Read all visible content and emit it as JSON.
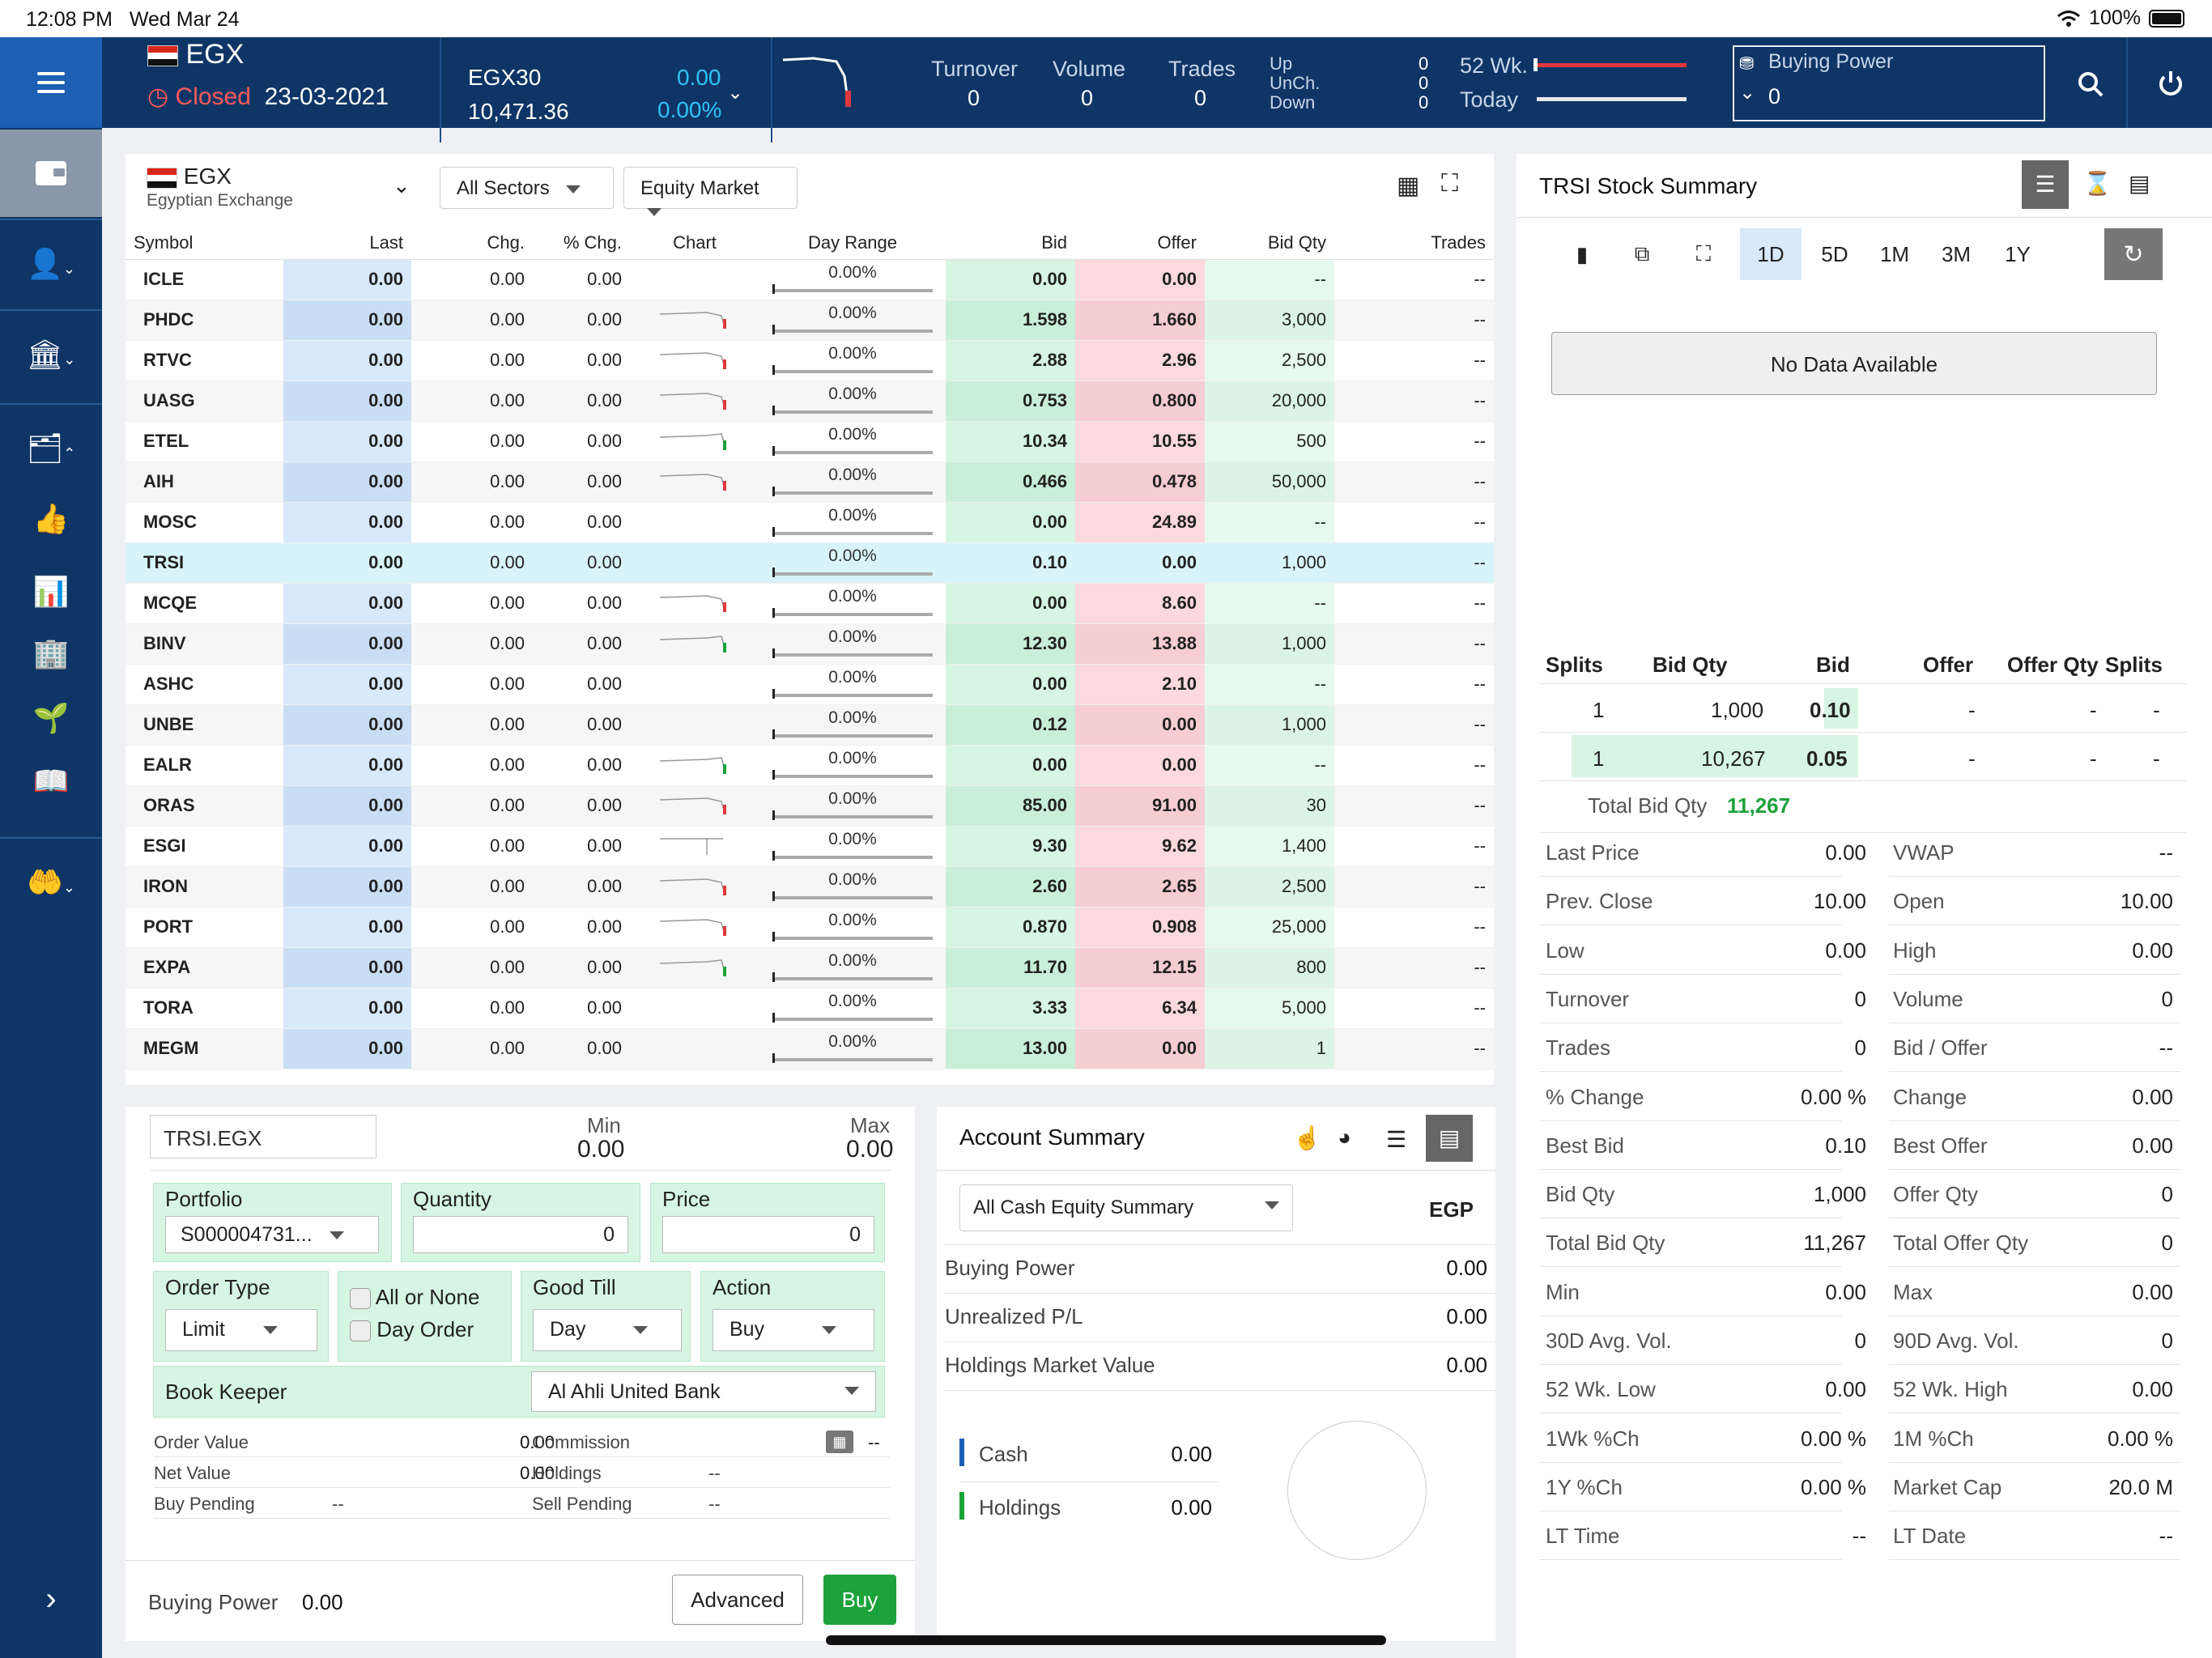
{
  "status": {
    "time": "12:08 PM",
    "date": "Wed Mar 24",
    "battery": "100%"
  },
  "header": {
    "exchange": "EGX",
    "state": "Closed",
    "date": "23-03-2021",
    "index_name": "EGX30",
    "index_value": "10,471.36",
    "index_change": "0.00",
    "index_pct": "0.00%",
    "turnover_label": "Turnover",
    "turnover": "0",
    "volume_label": "Volume",
    "volume": "0",
    "trades_label": "Trades",
    "trades": "0",
    "up_label": "Up",
    "unch_label": "UnCh.",
    "down_label": "Down",
    "up": "0",
    "unch": "0",
    "down": "0",
    "wk52_label": "52 Wk.",
    "today_label": "Today",
    "buying_power_label": "Buying Power",
    "buying_power": "0"
  },
  "watchlist": {
    "exchange": "EGX",
    "exchange_full": "Egyptian Exchange",
    "sector_filter": "All Sectors",
    "market_filter": "Equity Market",
    "columns": [
      "Symbol",
      "Last",
      "Chg.",
      "% Chg.",
      "Chart",
      "Day Range",
      "Bid",
      "Offer",
      "Bid Qty",
      "Trades"
    ],
    "rows": [
      {
        "s": "ICLE",
        "last": "0.00",
        "chg": "0.00",
        "pct": "0.00",
        "dr": "0.00%",
        "bid": "0.00",
        "off": "0.00",
        "bq": "--",
        "tr": "--",
        "chart": "none"
      },
      {
        "s": "PHDC",
        "last": "0.00",
        "chg": "0.00",
        "pct": "0.00",
        "dr": "0.00%",
        "bid": "1.598",
        "off": "1.660",
        "bq": "3,000",
        "tr": "--",
        "chart": "red"
      },
      {
        "s": "RTVC",
        "last": "0.00",
        "chg": "0.00",
        "pct": "0.00",
        "dr": "0.00%",
        "bid": "2.88",
        "off": "2.96",
        "bq": "2,500",
        "tr": "--",
        "chart": "red"
      },
      {
        "s": "UASG",
        "last": "0.00",
        "chg": "0.00",
        "pct": "0.00",
        "dr": "0.00%",
        "bid": "0.753",
        "off": "0.800",
        "bq": "20,000",
        "tr": "--",
        "chart": "red"
      },
      {
        "s": "ETEL",
        "last": "0.00",
        "chg": "0.00",
        "pct": "0.00",
        "dr": "0.00%",
        "bid": "10.34",
        "off": "10.55",
        "bq": "500",
        "tr": "--",
        "chart": "green"
      },
      {
        "s": "AIH",
        "last": "0.00",
        "chg": "0.00",
        "pct": "0.00",
        "dr": "0.00%",
        "bid": "0.466",
        "off": "0.478",
        "bq": "50,000",
        "tr": "--",
        "chart": "red"
      },
      {
        "s": "MOSC",
        "last": "0.00",
        "chg": "0.00",
        "pct": "0.00",
        "dr": "0.00%",
        "bid": "0.00",
        "off": "24.89",
        "bq": "--",
        "tr": "--",
        "chart": "none"
      },
      {
        "s": "TRSI",
        "last": "0.00",
        "chg": "0.00",
        "pct": "0.00",
        "dr": "0.00%",
        "bid": "0.10",
        "off": "0.00",
        "bq": "1,000",
        "tr": "--",
        "chart": "none",
        "sel": true
      },
      {
        "s": "MCQE",
        "last": "0.00",
        "chg": "0.00",
        "pct": "0.00",
        "dr": "0.00%",
        "bid": "0.00",
        "off": "8.60",
        "bq": "--",
        "tr": "--",
        "chart": "red"
      },
      {
        "s": "BINV",
        "last": "0.00",
        "chg": "0.00",
        "pct": "0.00",
        "dr": "0.00%",
        "bid": "12.30",
        "off": "13.88",
        "bq": "1,000",
        "tr": "--",
        "chart": "green"
      },
      {
        "s": "ASHC",
        "last": "0.00",
        "chg": "0.00",
        "pct": "0.00",
        "dr": "0.00%",
        "bid": "0.00",
        "off": "2.10",
        "bq": "--",
        "tr": "--",
        "chart": "none"
      },
      {
        "s": "UNBE",
        "last": "0.00",
        "chg": "0.00",
        "pct": "0.00",
        "dr": "0.00%",
        "bid": "0.12",
        "off": "0.00",
        "bq": "1,000",
        "tr": "--",
        "chart": "none"
      },
      {
        "s": "EALR",
        "last": "0.00",
        "chg": "0.00",
        "pct": "0.00",
        "dr": "0.00%",
        "bid": "0.00",
        "off": "0.00",
        "bq": "--",
        "tr": "--",
        "chart": "green"
      },
      {
        "s": "ORAS",
        "last": "0.00",
        "chg": "0.00",
        "pct": "0.00",
        "dr": "0.00%",
        "bid": "85.00",
        "off": "91.00",
        "bq": "30",
        "tr": "--",
        "chart": "red"
      },
      {
        "s": "ESGI",
        "last": "0.00",
        "chg": "0.00",
        "pct": "0.00",
        "dr": "0.00%",
        "bid": "9.30",
        "off": "9.62",
        "bq": "1,400",
        "tr": "--",
        "chart": "flat"
      },
      {
        "s": "IRON",
        "last": "0.00",
        "chg": "0.00",
        "pct": "0.00",
        "dr": "0.00%",
        "bid": "2.60",
        "off": "2.65",
        "bq": "2,500",
        "tr": "--",
        "chart": "red"
      },
      {
        "s": "PORT",
        "last": "0.00",
        "chg": "0.00",
        "pct": "0.00",
        "dr": "0.00%",
        "bid": "0.870",
        "off": "0.908",
        "bq": "25,000",
        "tr": "--",
        "chart": "red"
      },
      {
        "s": "EXPA",
        "last": "0.00",
        "chg": "0.00",
        "pct": "0.00",
        "dr": "0.00%",
        "bid": "11.70",
        "off": "12.15",
        "bq": "800",
        "tr": "--",
        "chart": "green"
      },
      {
        "s": "TORA",
        "last": "0.00",
        "chg": "0.00",
        "pct": "0.00",
        "dr": "0.00%",
        "bid": "3.33",
        "off": "6.34",
        "bq": "5,000",
        "tr": "--",
        "chart": "none"
      },
      {
        "s": "MEGM",
        "last": "0.00",
        "chg": "0.00",
        "pct": "0.00",
        "dr": "0.00%",
        "bid": "13.00",
        "off": "0.00",
        "bq": "1",
        "tr": "--",
        "chart": "none"
      }
    ]
  },
  "order": {
    "symbol": "TRSI.EGX",
    "min_label": "Min",
    "min": "0.00",
    "max_label": "Max",
    "max": "0.00",
    "portfolio_label": "Portfolio",
    "portfolio": "S000004731...",
    "quantity_label": "Quantity",
    "quantity": "0",
    "price_label": "Price",
    "price": "0",
    "order_type_label": "Order Type",
    "order_type": "Limit",
    "all_or_none": "All or None",
    "day_order": "Day Order",
    "good_till_label": "Good Till",
    "good_till": "Day",
    "action_label": "Action",
    "action": "Buy",
    "book_keeper_label": "Book Keeper",
    "book_keeper": "Al Ahli United Bank",
    "order_value_label": "Order Value",
    "order_value": "0.00",
    "net_value_label": "Net Value",
    "net_value": "0.00",
    "buy_pending_label": "Buy Pending",
    "buy_pending": "--",
    "commission_label": "Commission",
    "commission": "--",
    "holdings_label": "Holdings",
    "holdings": "--",
    "sell_pending_label": "Sell Pending",
    "sell_pending": "--",
    "buying_power_label": "Buying Power",
    "buying_power": "0.00",
    "advanced_label": "Advanced",
    "buy_label": "Buy"
  },
  "account": {
    "title": "Account Summary",
    "summary_type": "All Cash Equity Summary",
    "currency": "EGP",
    "buying_power_label": "Buying Power",
    "buying_power": "0.00",
    "unrealized_label": "Unrealized P/L",
    "unrealized": "0.00",
    "holdings_mv_label": "Holdings Market Value",
    "holdings_mv": "0.00",
    "cash_label": "Cash",
    "cash": "0.00",
    "holdings_label": "Holdings",
    "holdings": "0.00"
  },
  "stock": {
    "title": "TRSI Stock Summary",
    "periods": [
      "1D",
      "5D",
      "1M",
      "3M",
      "1Y"
    ],
    "no_data": "No Data Available",
    "depth_headers": [
      "Splits",
      "Bid Qty",
      "Bid",
      "Offer",
      "Offer Qty",
      "Splits"
    ],
    "depth_rows": [
      {
        "splits": "1",
        "bq": "1,000",
        "bid": "0.10",
        "offer": "-",
        "oq": "-",
        "os": "-"
      },
      {
        "splits": "1",
        "bq": "10,267",
        "bid": "0.05",
        "offer": "-",
        "oq": "-",
        "os": "-"
      }
    ],
    "total_bid_label": "Total Bid Qty",
    "total_bid": "11,267",
    "stats": [
      [
        "Last Price",
        "0.00",
        "VWAP",
        "--"
      ],
      [
        "Prev. Close",
        "10.00",
        "Open",
        "10.00"
      ],
      [
        "Low",
        "0.00",
        "High",
        "0.00"
      ],
      [
        "Turnover",
        "0",
        "Volume",
        "0"
      ],
      [
        "Trades",
        "0",
        "Bid / Offer",
        "--"
      ],
      [
        "% Change",
        "0.00 %",
        "Change",
        "0.00"
      ],
      [
        "Best Bid",
        "0.10",
        "Best Offer",
        "0.00"
      ],
      [
        "Bid Qty",
        "1,000",
        "Offer Qty",
        "0"
      ],
      [
        "Total Bid Qty",
        "11,267",
        "Total Offer Qty",
        "0"
      ],
      [
        "Min",
        "0.00",
        "Max",
        "0.00"
      ],
      [
        "30D Avg. Vol.",
        "0",
        "90D Avg. Vol.",
        "0"
      ],
      [
        "52 Wk. Low",
        "0.00",
        "52 Wk. High",
        "0.00"
      ],
      [
        "1Wk %Ch",
        "0.00 %",
        "1M %Ch",
        "0.00 %"
      ],
      [
        "1Y %Ch",
        "0.00 %",
        "Market Cap",
        "20.0 M"
      ],
      [
        "LT Time",
        "--",
        "LT Date",
        "--"
      ]
    ]
  },
  "colors": {
    "navy": "#0e3566",
    "blue": "#1d5fb3",
    "green": "#1ca23a",
    "red": "#e0383e",
    "cyan": "#2ec3f5"
  }
}
